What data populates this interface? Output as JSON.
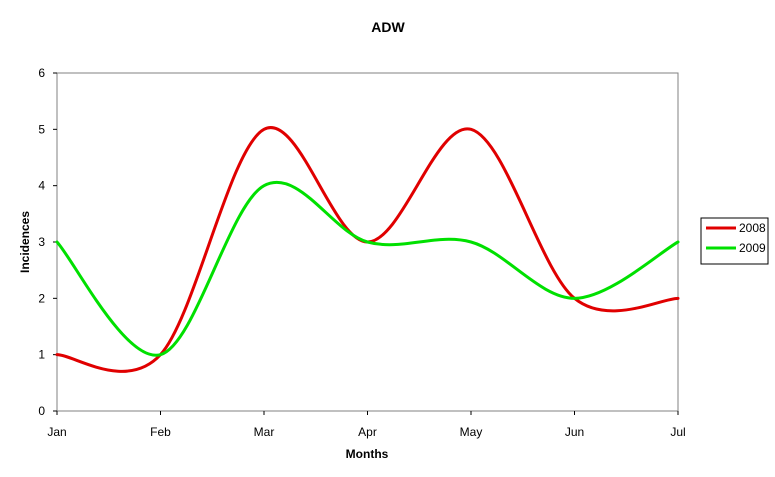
{
  "chart_data": {
    "type": "line",
    "title": "ADW",
    "xlabel": "Months",
    "ylabel": "Incidences",
    "categories": [
      "Jan",
      "Feb",
      "Mar",
      "Apr",
      "May",
      "Jun",
      "Jul"
    ],
    "ylim": [
      0,
      6
    ],
    "yticks": [
      0,
      1,
      2,
      3,
      4,
      5,
      6
    ],
    "grid": false,
    "smoothed": true,
    "legend_position": "right",
    "series": [
      {
        "name": "2008",
        "color": "#e00000",
        "values": [
          1,
          1,
          5,
          3,
          5,
          2,
          2
        ]
      },
      {
        "name": "2009",
        "color": "#00e000",
        "values": [
          3,
          1,
          4,
          3,
          3,
          2,
          3
        ]
      }
    ]
  }
}
